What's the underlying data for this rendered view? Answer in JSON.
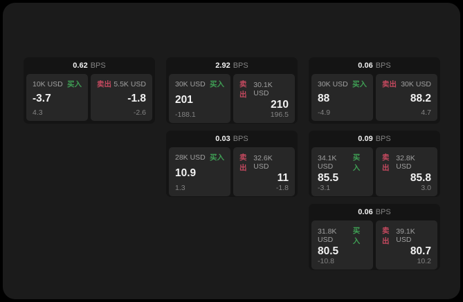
{
  "colors": {
    "surface": "#1b1b1b",
    "card_bg": "#141414",
    "panel_bg": "#272727",
    "buy_green": "#3f9e54",
    "sell_red": "#c4495f",
    "text_primary": "#f2f2f2",
    "text_secondary": "#a0a0a0",
    "text_muted": "#848484"
  },
  "labels": {
    "bps_unit": "BPS",
    "buy": "买入",
    "sell": "卖出"
  },
  "cards": [
    {
      "row": 1,
      "col": 1,
      "bps": "0.62",
      "buy": {
        "amount": "10K USD",
        "value": "-3.7",
        "sub": "4.3"
      },
      "sell": {
        "amount": "5.5K USD",
        "value": "-1.8",
        "sub": "-2.6"
      }
    },
    {
      "row": 1,
      "col": 2,
      "bps": "2.92",
      "buy": {
        "amount": "30K USD",
        "value": "201",
        "sub": "-188.1"
      },
      "sell": {
        "amount": "30.1K USD",
        "value": "210",
        "sub": "196.5"
      }
    },
    {
      "row": 1,
      "col": 3,
      "bps": "0.06",
      "buy": {
        "amount": "30K USD",
        "value": "88",
        "sub": "-4.9"
      },
      "sell": {
        "amount": "30K USD",
        "value": "88.2",
        "sub": "4.7"
      }
    },
    {
      "row": 2,
      "col": 2,
      "bps": "0.03",
      "buy": {
        "amount": "28K USD",
        "value": "10.9",
        "sub": "1.3"
      },
      "sell": {
        "amount": "32.6K USD",
        "value": "11",
        "sub": "-1.8"
      }
    },
    {
      "row": 2,
      "col": 3,
      "bps": "0.09",
      "buy": {
        "amount": "34.1K USD",
        "value": "85.5",
        "sub": "-3.1"
      },
      "sell": {
        "amount": "32.8K USD",
        "value": "85.8",
        "sub": "3.0"
      }
    },
    {
      "row": 3,
      "col": 3,
      "bps": "0.06",
      "buy": {
        "amount": "31.8K USD",
        "value": "80.5",
        "sub": "-10.8"
      },
      "sell": {
        "amount": "39.1K USD",
        "value": "80.7",
        "sub": "10.2"
      }
    }
  ]
}
